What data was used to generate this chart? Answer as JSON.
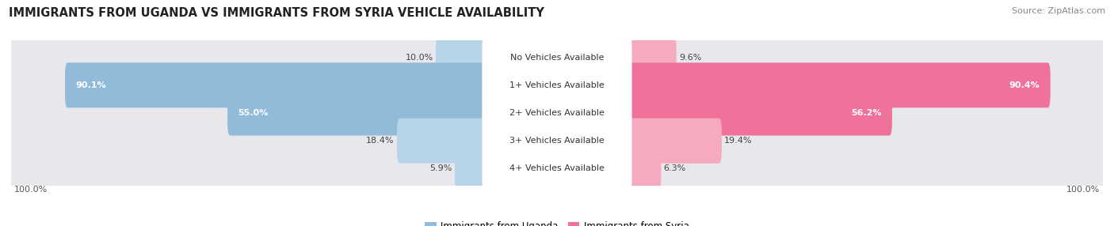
{
  "title": "IMMIGRANTS FROM UGANDA VS IMMIGRANTS FROM SYRIA VEHICLE AVAILABILITY",
  "source": "Source: ZipAtlas.com",
  "categories": [
    "No Vehicles Available",
    "1+ Vehicles Available",
    "2+ Vehicles Available",
    "3+ Vehicles Available",
    "4+ Vehicles Available"
  ],
  "uganda_values": [
    10.0,
    90.1,
    55.0,
    18.4,
    5.9
  ],
  "syria_values": [
    9.6,
    90.4,
    56.2,
    19.4,
    6.3
  ],
  "uganda_color": "#92BBD9",
  "syria_color": "#F0729A",
  "uganda_color_light": "#B8D4E8",
  "syria_color_light": "#F5AABF",
  "uganda_label": "Immigrants from Uganda",
  "syria_label": "Immigrants from Syria",
  "row_bg_color": "#E8E8EC",
  "max_val": 100.0,
  "title_fontsize": 10.5,
  "label_fontsize": 8.0,
  "source_fontsize": 8.0,
  "legend_fontsize": 8.5,
  "value_label_threshold": 25
}
